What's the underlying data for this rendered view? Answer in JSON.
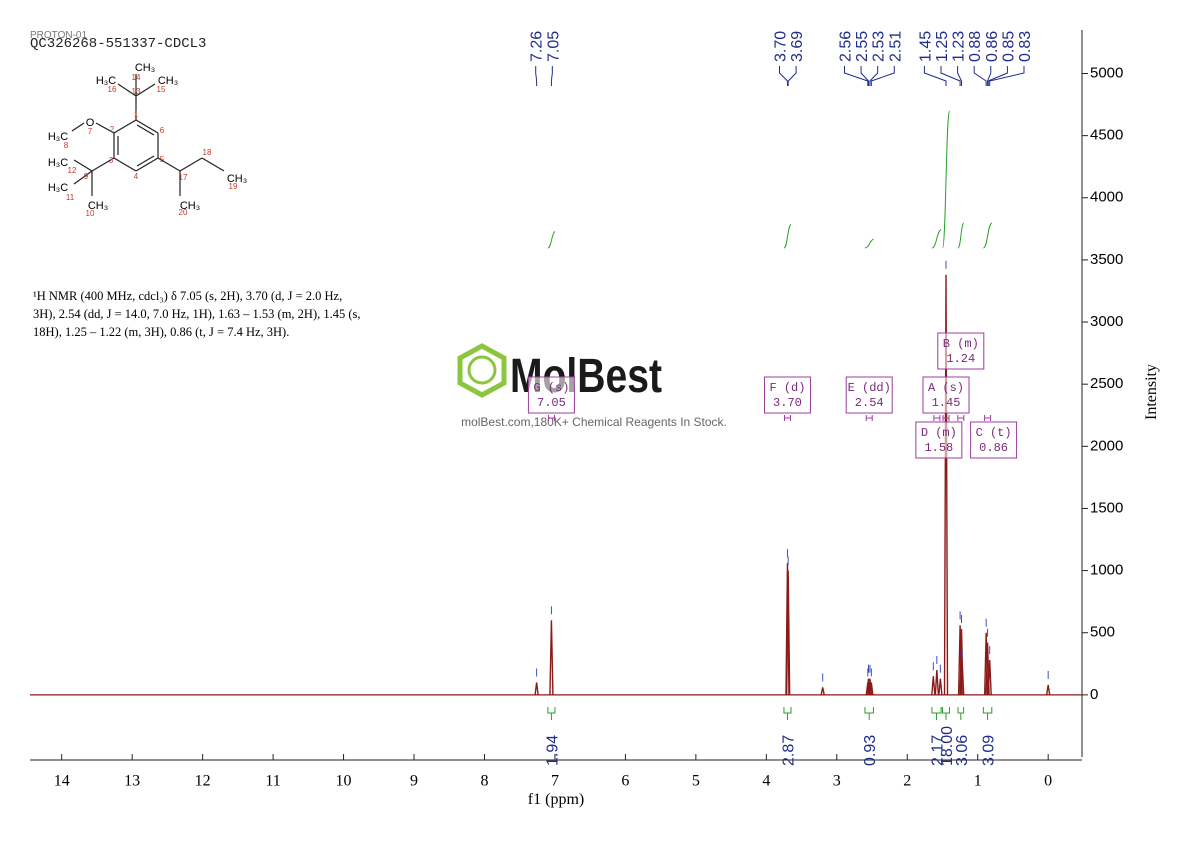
{
  "chart_data": {
    "type": "nmr",
    "sample_id": "QC326268-551337-CDCL3",
    "experiment": "PROTON-01",
    "xlabel": "f1 (ppm)",
    "ylabel": "Intensity",
    "xlim": [
      14.45,
      -0.48
    ],
    "xticks": [
      14,
      13,
      12,
      11,
      10,
      9,
      8,
      7,
      6,
      5,
      4,
      3,
      2,
      1,
      0
    ],
    "ylim": [
      -500,
      5350
    ],
    "yticks": [
      0,
      500,
      1000,
      1500,
      2000,
      2500,
      3000,
      3500,
      4000,
      4500,
      5000
    ],
    "series": [
      {
        "color": "#8b1a1a",
        "x": [
          7.26,
          7.05,
          3.7,
          3.69,
          3.2,
          2.56,
          2.55,
          2.53,
          2.51,
          1.63,
          1.58,
          1.53,
          1.45,
          1.25,
          1.23,
          1.22,
          0.88,
          0.86,
          0.83,
          0
        ],
        "values": [
          100,
          600,
          1060,
          1000,
          60,
          100,
          130,
          130,
          100,
          150,
          200,
          130,
          3380,
          560,
          530,
          250,
          500,
          420,
          280,
          80
        ]
      }
    ],
    "peak_labels": [
      7.26,
      7.05,
      3.7,
      3.69,
      2.56,
      2.55,
      2.53,
      2.51,
      1.45,
      1.25,
      1.23,
      0.88,
      0.86,
      0.85,
      0.83
    ],
    "peak_label_texts": [
      "7.26",
      "7.05",
      "3.70",
      "3.69",
      "2.56",
      "2.55",
      "2.53",
      "2.51",
      "1.45",
      "1.25",
      "1.23",
      "0.88",
      "0.86",
      "0.85",
      "0.83"
    ],
    "integrals": {
      "ranges": [
        [
          7.1,
          7.0
        ],
        [
          3.75,
          3.65
        ],
        [
          2.6,
          2.48
        ],
        [
          1.65,
          1.52
        ],
        [
          1.5,
          1.4
        ],
        [
          1.28,
          1.2
        ],
        [
          0.92,
          0.8
        ]
      ],
      "values": [
        1.94,
        2.87,
        0.93,
        2.17,
        18,
        3.06,
        3.09
      ],
      "value_labels": [
        "1.94",
        "2.87",
        "0.93",
        "2.17",
        "18.00",
        "3.06",
        "3.09"
      ]
    },
    "multiplets": {
      "names": [
        "G (s)",
        "F (d)",
        "E (dd)",
        "A (s)",
        "B (m)",
        "D (m)",
        "C (t)"
      ],
      "shifts": [
        7.05,
        3.7,
        2.54,
        1.45,
        1.24,
        1.58,
        0.86
      ],
      "shift_labels": [
        "7.05",
        "3.70",
        "2.54",
        "1.45",
        "1.24",
        "1.58",
        "0.86"
      ]
    },
    "description": [
      "¹H NMR (400 MHz, cdcl₃) δ 7.05 (s, 2H), 3.70 (d, J = 2.0 Hz,",
      "3H), 2.54 (dd, J = 14.0, 7.0 Hz, 1H), 1.63 – 1.53 (m, 2H), 1.45 (s,",
      "18H), 1.25 – 1.22 (m, 3H), 0.86 (t, J = 7.4 Hz, 3H)."
    ],
    "structure": {
      "atoms": [
        "CH₃",
        "H₃C",
        "CH₃",
        "O",
        "H₃C",
        "H₃C",
        "H₃C",
        "CH₃",
        "CH₃",
        "CH₃"
      ],
      "numbers": [
        "1",
        "2",
        "3",
        "4",
        "5",
        "6",
        "7",
        "8",
        "9",
        "10",
        "11",
        "12",
        "13",
        "14",
        "15",
        "16",
        "17",
        "18",
        "19",
        "20"
      ]
    },
    "watermark": {
      "brand": "MolBest",
      "tagline": "molBest.com,180K+ Chemical Reagents In Stock."
    }
  }
}
